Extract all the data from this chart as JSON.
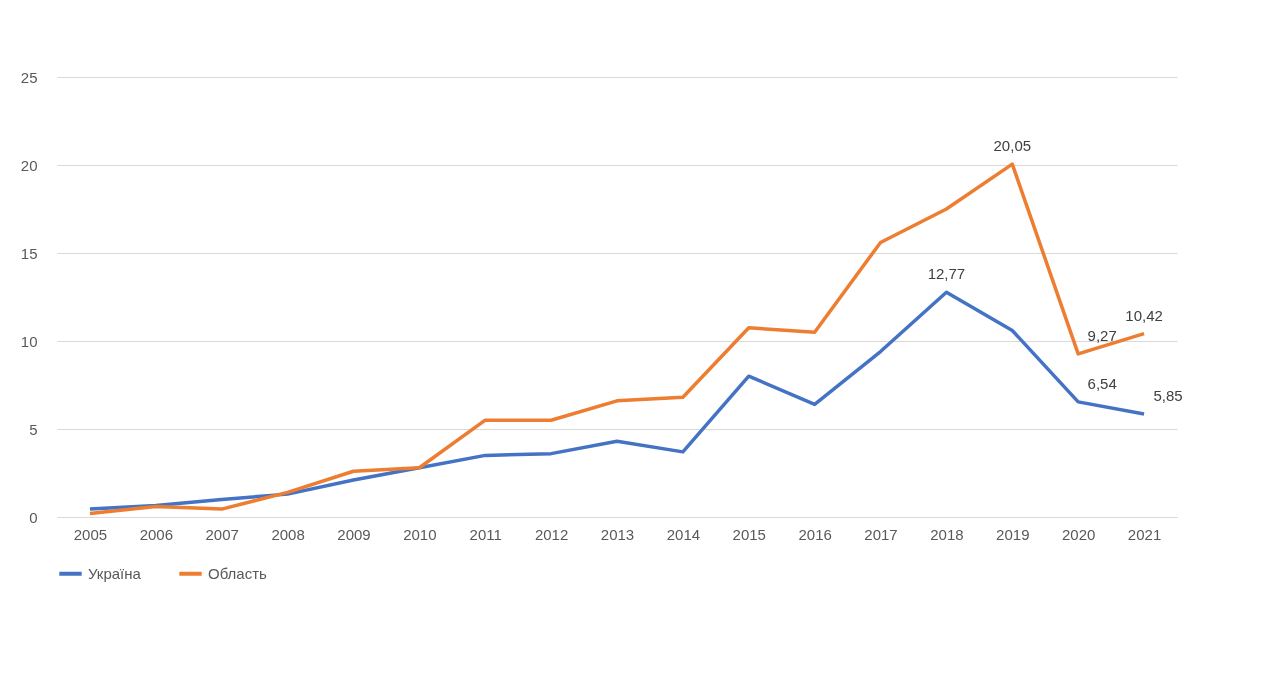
{
  "chart_data": {
    "type": "line",
    "categories": [
      "2005",
      "2006",
      "2007",
      "2008",
      "2009",
      "2010",
      "2011",
      "2012",
      "2013",
      "2014",
      "2015",
      "2016",
      "2017",
      "2018",
      "2019",
      "2020",
      "2021"
    ],
    "series": [
      {
        "name": "Україна",
        "color": "#4472c4",
        "values": [
          0.45,
          0.65,
          1.0,
          1.3,
          2.1,
          2.8,
          3.5,
          3.6,
          4.3,
          3.7,
          8.0,
          6.4,
          9.4,
          12.77,
          10.6,
          6.54,
          5.85
        ],
        "value_labels": [
          null,
          null,
          null,
          null,
          null,
          null,
          null,
          null,
          null,
          null,
          null,
          null,
          null,
          "12,77",
          null,
          "6,54",
          "5,85"
        ]
      },
      {
        "name": "Область",
        "color": "#ed7d31",
        "values": [
          0.2,
          0.6,
          0.45,
          1.4,
          2.6,
          2.8,
          5.5,
          5.5,
          6.6,
          6.8,
          10.75,
          10.5,
          15.6,
          17.5,
          20.05,
          9.27,
          10.42
        ],
        "value_labels": [
          null,
          null,
          null,
          null,
          null,
          null,
          null,
          null,
          null,
          null,
          null,
          null,
          null,
          null,
          "20,05",
          "9,27",
          "10,42"
        ]
      }
    ],
    "ylim": [
      0,
      25
    ],
    "yticks": [
      0,
      5,
      10,
      15,
      20,
      25
    ],
    "grid": "y",
    "legend": "bottom",
    "line_style": "solid",
    "marker": "none"
  }
}
